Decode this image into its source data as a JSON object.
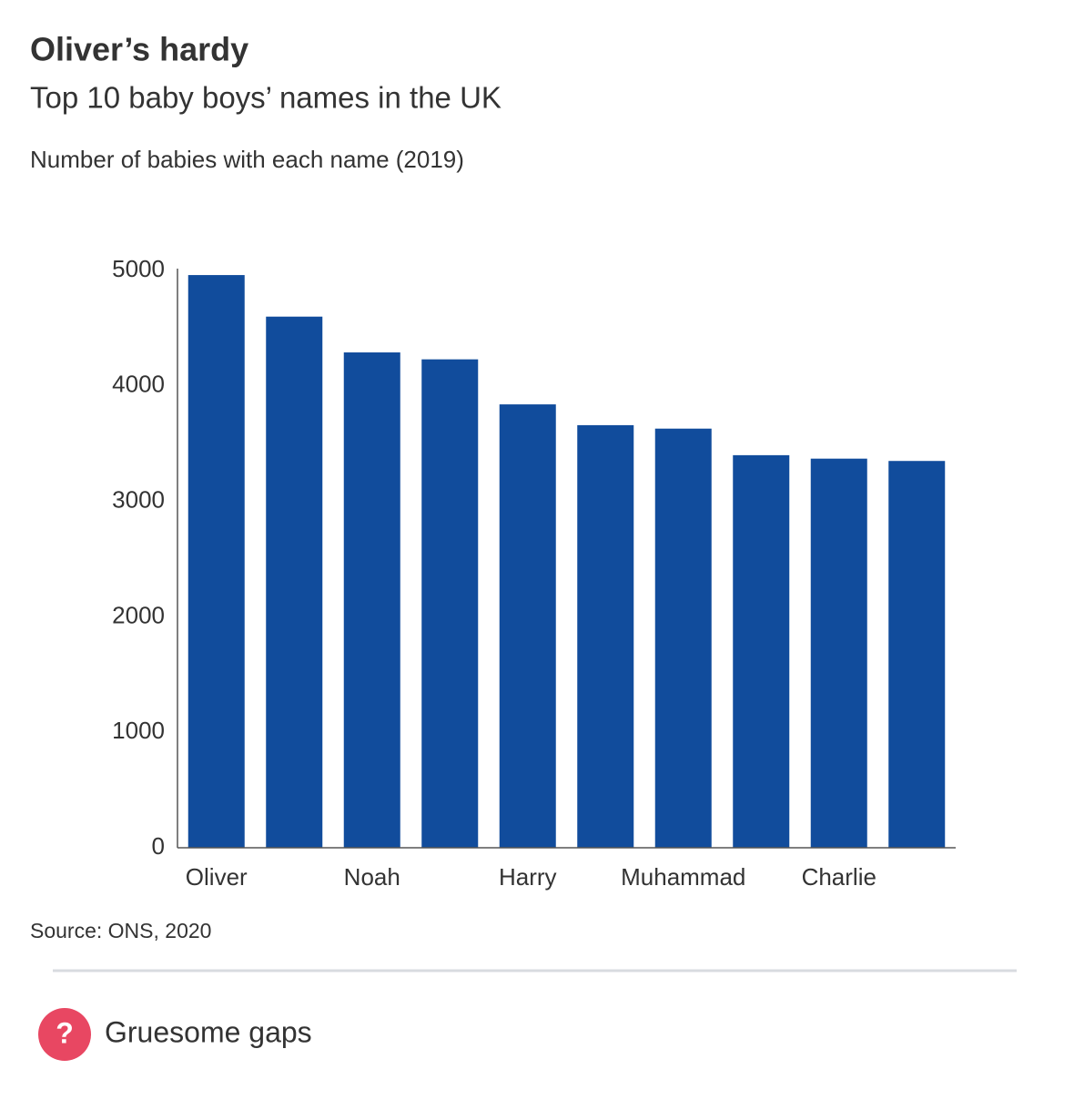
{
  "chart_data": {
    "type": "bar",
    "title": "Oliver’s hardy",
    "subtitle": "Top 10 baby boys’ names in the UK",
    "y_label": "Number of babies with each name (2019)",
    "categories": [
      "Oliver",
      null,
      "Noah",
      null,
      "Harry",
      null,
      "Muhammad",
      null,
      "Charlie",
      null
    ],
    "values": [
      4960,
      4600,
      4290,
      4230,
      3840,
      3660,
      3630,
      3400,
      3370,
      3350
    ],
    "color": "#114c9c",
    "ylim": [
      0,
      5000
    ],
    "yticks": [
      0,
      1000,
      2000,
      3000,
      4000,
      5000
    ],
    "grid": false,
    "source": "Source: ONS, 2020"
  },
  "footer": {
    "icon": "?",
    "text": "Gruesome gaps"
  }
}
